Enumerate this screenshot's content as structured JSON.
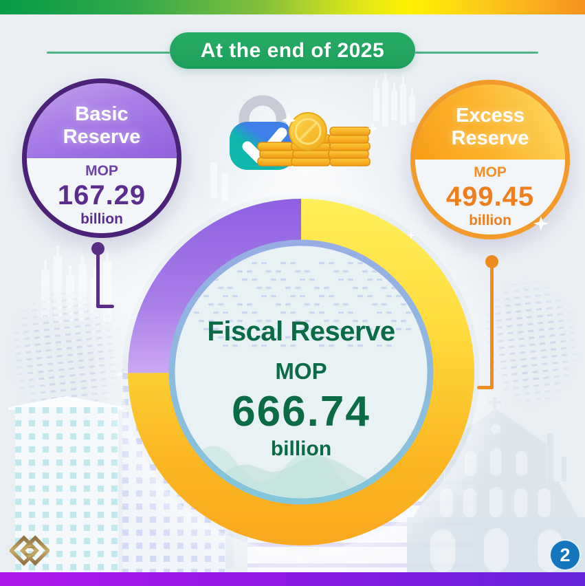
{
  "banner": {
    "label": "At the end of 2025"
  },
  "reserves": {
    "basic": {
      "title": "Basic Reserve",
      "currency": "MOP",
      "value": "167.29",
      "unit": "billion"
    },
    "excess": {
      "title": "Excess Reserve",
      "currency": "MOP",
      "value": "499.45",
      "unit": "billion"
    },
    "fiscal": {
      "title": "Fiscal Reserve",
      "currency": "MOP",
      "value": "666.74",
      "unit": "billion"
    }
  },
  "footer": {
    "page_number": "2"
  },
  "icons": {
    "lock_check": "lock-with-checkmark",
    "coins": "gold-coin-stacks",
    "logo": "amcm-gold-diamonds-logo",
    "sparkle": "four-point-star"
  },
  "colors": {
    "banner_green": "#21A762",
    "basic_purple": "#5B2D8E",
    "basic_fill_top": "#A77DE6",
    "excess_orange": "#EE7F1F",
    "excess_fill_top": "#FBB42D",
    "fiscal_green": "#0A6B46",
    "segment_basic": "#9A68EA",
    "segment_excess_top": "#FFEF5A",
    "segment_excess_bottom": "#F9A81E",
    "badge_blue": "#1477BE",
    "topbar_gradient": [
      "#089B48",
      "#FFF200",
      "#F6921E"
    ],
    "bottombar_gradient": [
      "#AE19E9",
      "#6526D9"
    ]
  },
  "chart_data": {
    "type": "pie",
    "donut": true,
    "title": "Fiscal Reserve",
    "subtitle": "At the end of 2025",
    "unit": "MOP billion",
    "total": 666.74,
    "series": [
      {
        "name": "Basic Reserve",
        "value": 167.29,
        "percent": 25.1,
        "color": "#9A68EA"
      },
      {
        "name": "Excess Reserve",
        "value": 499.45,
        "percent": 74.9,
        "color": "#FFD83C"
      }
    ],
    "center_label": "Fiscal Reserve MOP 666.74 billion",
    "start_angle_deg": 0,
    "basic_sweep_deg_ccw_from_top": 90.3
  }
}
